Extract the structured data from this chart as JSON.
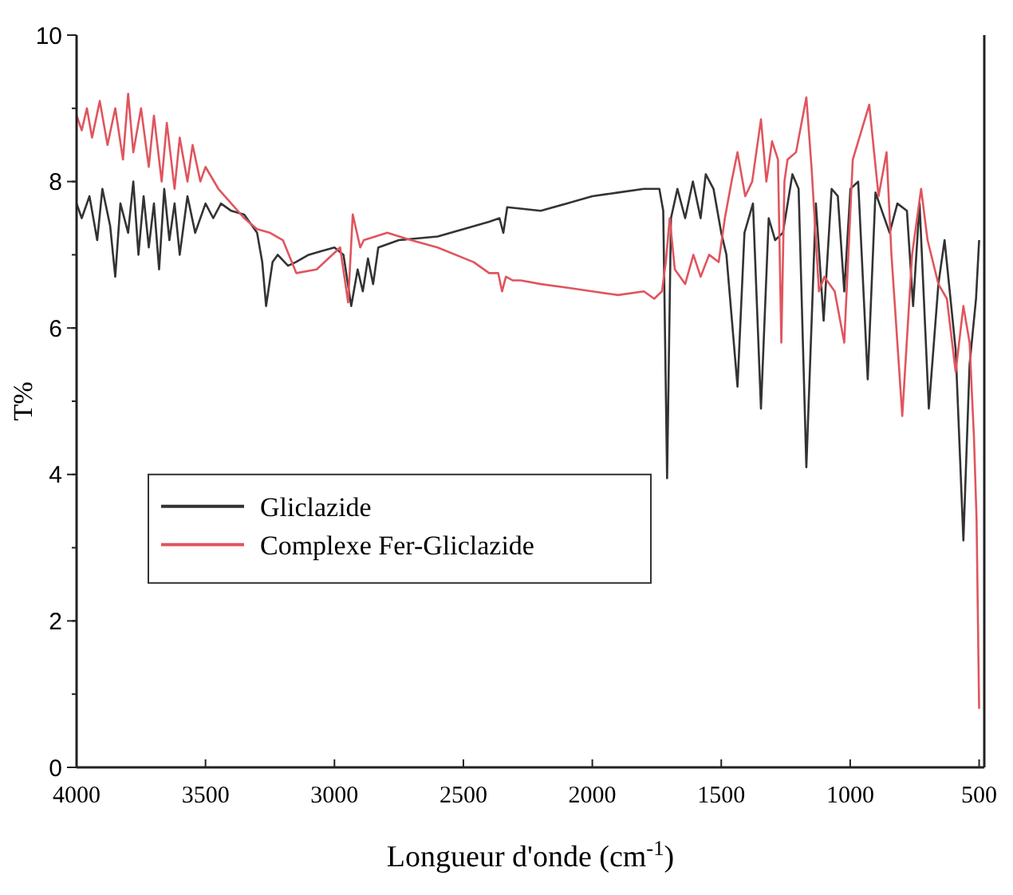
{
  "chart_data": {
    "type": "line",
    "xlabel": "Longueur d'onde (cm$^{-1}$)",
    "ylabel": "T%",
    "xlim": [
      4000,
      480
    ],
    "xticks": [
      4000,
      3500,
      3000,
      2500,
      2000,
      1500,
      1000,
      500
    ],
    "ylim": [
      0,
      10
    ],
    "yticks": [
      0,
      2,
      4,
      6,
      8,
      10
    ],
    "grid": false,
    "legend": "left",
    "marker": "none",
    "line_style": "solid",
    "x": [
      4000,
      3980,
      3950,
      3920,
      3900,
      3870,
      3850,
      3830,
      3800,
      3780,
      3760,
      3740,
      3720,
      3700,
      3680,
      3660,
      3640,
      3620,
      3600,
      3570,
      3540,
      3500,
      3470,
      3440,
      3400,
      3350,
      3300,
      3280,
      3265,
      3240,
      3220,
      3180,
      3150,
      3100,
      3050,
      3000,
      2965,
      2935,
      2910,
      2890,
      2870,
      2850,
      2830,
      2750,
      2600,
      2500,
      2400,
      2360,
      2345,
      2330,
      2200,
      2100,
      2000,
      1900,
      1800,
      1740,
      1725,
      1710,
      1695,
      1670,
      1640,
      1610,
      1580,
      1560,
      1530,
      1500,
      1480,
      1437,
      1410,
      1377,
      1346,
      1316,
      1291,
      1261,
      1224,
      1200,
      1170,
      1133,
      1103,
      1072,
      1048,
      1023,
      999,
      969,
      932,
      902,
      877,
      847,
      817,
      780,
      756,
      731,
      695,
      658,
      634,
      591,
      561,
      537,
      512,
      500
    ],
    "series": [
      {
        "name": "Gliclazide",
        "color": "#333333",
        "values": [
          7.7,
          7.5,
          7.8,
          7.2,
          7.9,
          7.4,
          6.7,
          7.7,
          7.3,
          8.0,
          7.0,
          7.8,
          7.1,
          7.7,
          6.8,
          7.9,
          7.2,
          7.7,
          7.0,
          7.8,
          7.3,
          7.7,
          7.5,
          7.7,
          7.6,
          7.55,
          7.3,
          6.9,
          6.3,
          6.9,
          7.0,
          6.85,
          6.9,
          7.0,
          7.05,
          7.1,
          7.0,
          6.3,
          6.8,
          6.5,
          6.95,
          6.6,
          7.1,
          7.2,
          7.25,
          7.35,
          7.45,
          7.5,
          7.3,
          7.65,
          7.6,
          7.7,
          7.8,
          7.85,
          7.9,
          7.9,
          7.6,
          3.95,
          7.5,
          7.9,
          7.5,
          8.0,
          7.5,
          8.1,
          7.9,
          7.3,
          7.0,
          5.2,
          7.3,
          7.7,
          4.9,
          7.5,
          7.2,
          7.3,
          8.1,
          7.9,
          4.1,
          7.7,
          6.1,
          7.9,
          7.8,
          6.5,
          7.9,
          8.0,
          5.3,
          7.85,
          7.6,
          7.3,
          7.7,
          7.6,
          6.3,
          7.7,
          4.9,
          6.6,
          7.2,
          5.7,
          3.1,
          5.5,
          6.4,
          7.2
        ]
      },
      {
        "name": "Complexe Fer-Gliclazide",
        "color": "#e0555e",
        "x": [
          4000,
          3980,
          3960,
          3940,
          3910,
          3880,
          3850,
          3820,
          3800,
          3780,
          3750,
          3720,
          3700,
          3670,
          3650,
          3620,
          3600,
          3570,
          3550,
          3520,
          3500,
          3450,
          3400,
          3350,
          3300,
          3250,
          3200,
          3148,
          3069,
          2978,
          2947,
          2929,
          2900,
          2886,
          2795,
          2703,
          2600,
          2460,
          2400,
          2365,
          2350,
          2335,
          2308,
          2278,
          2200,
          2095,
          2000,
          1900,
          1800,
          1760,
          1730,
          1715,
          1700,
          1680,
          1640,
          1608,
          1580,
          1547,
          1510,
          1486,
          1460,
          1437,
          1407,
          1380,
          1346,
          1325,
          1303,
          1280,
          1267,
          1255,
          1243,
          1210,
          1170,
          1150,
          1121,
          1100,
          1060,
          1023,
          990,
          926,
          890,
          859,
          840,
          798,
          760,
          725,
          700,
          658,
          625,
          591,
          561,
          537,
          520,
          510,
          500
        ],
        "values": [
          8.9,
          8.7,
          9.0,
          8.6,
          9.1,
          8.5,
          9.0,
          8.3,
          9.2,
          8.4,
          9.0,
          8.2,
          8.9,
          8.0,
          8.8,
          7.9,
          8.6,
          8.0,
          8.5,
          8.0,
          8.2,
          7.9,
          7.7,
          7.5,
          7.35,
          7.3,
          7.2,
          6.75,
          6.8,
          7.1,
          6.35,
          7.55,
          7.1,
          7.2,
          7.3,
          7.2,
          7.1,
          6.9,
          6.75,
          6.75,
          6.5,
          6.7,
          6.65,
          6.65,
          6.6,
          6.55,
          6.5,
          6.45,
          6.5,
          6.4,
          6.5,
          6.9,
          7.5,
          6.8,
          6.6,
          7.0,
          6.7,
          7.0,
          6.9,
          7.5,
          8.0,
          8.4,
          7.8,
          8.0,
          8.85,
          8.0,
          8.55,
          8.3,
          5.8,
          8.0,
          8.3,
          8.4,
          9.15,
          8.2,
          6.5,
          6.7,
          6.5,
          5.8,
          8.3,
          9.05,
          7.8,
          8.4,
          7.0,
          4.8,
          7.0,
          7.9,
          7.2,
          6.6,
          6.4,
          5.4,
          6.3,
          5.8,
          4.5,
          3.4,
          0.8
        ]
      }
    ]
  }
}
